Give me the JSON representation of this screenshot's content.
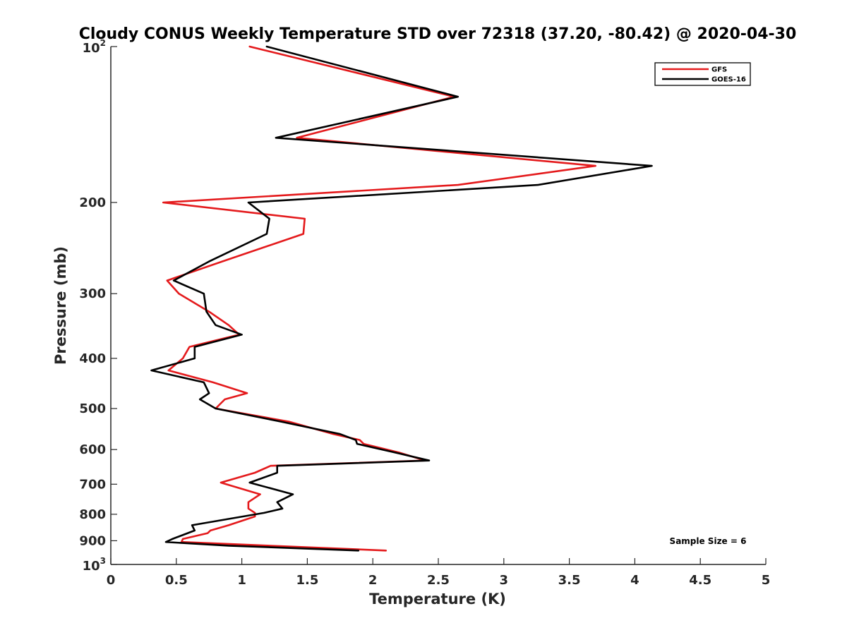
{
  "chart_data": {
    "type": "line",
    "title": "Cloudy CONUS Weekly Temperature STD over 72318 (37.20, -80.42) @ 2020-04-30",
    "xlabel": "Temperature (K)",
    "ylabel": "Pressure (mb)",
    "xlim": [
      0,
      5
    ],
    "ylim": [
      100,
      1000
    ],
    "yscale": "log",
    "yreversed": true,
    "x_ticks": [
      0,
      0.5,
      1,
      1.5,
      2,
      2.5,
      3,
      3.5,
      4,
      4.5,
      5
    ],
    "x_tick_labels": [
      "0",
      "0.5",
      "1",
      "1.5",
      "2",
      "2.5",
      "3",
      "3.5",
      "4",
      "4.5",
      "5"
    ],
    "y_ticks": [
      200,
      300,
      400,
      500,
      600,
      700,
      800,
      900
    ],
    "y_tick_labels": [
      "200",
      "300",
      "400",
      "500",
      "600",
      "700",
      "800",
      "900"
    ],
    "y_exp_ticks": [
      {
        "value": 100,
        "base": "10",
        "exp": "2"
      },
      {
        "value": 1000,
        "base": "10",
        "exp": "3"
      }
    ],
    "legend_position": "top-right",
    "annotation": "Sample Size = 6",
    "series": [
      {
        "name": "GFS",
        "color": "#e41a1c",
        "points": [
          [
            1.06,
            100
          ],
          [
            2.62,
            125
          ],
          [
            1.42,
            150
          ],
          [
            3.7,
            170
          ],
          [
            2.65,
            185
          ],
          [
            0.4,
            200
          ],
          [
            1.48,
            215
          ],
          [
            1.47,
            230
          ],
          [
            0.85,
            260
          ],
          [
            0.43,
            283
          ],
          [
            0.52,
            300
          ],
          [
            0.75,
            325
          ],
          [
            0.9,
            345
          ],
          [
            0.98,
            360
          ],
          [
            0.6,
            380
          ],
          [
            0.55,
            400
          ],
          [
            0.44,
            422
          ],
          [
            0.78,
            445
          ],
          [
            1.04,
            467
          ],
          [
            0.87,
            480
          ],
          [
            0.8,
            500
          ],
          [
            1.36,
            530
          ],
          [
            1.7,
            560
          ],
          [
            1.9,
            575
          ],
          [
            1.93,
            585
          ],
          [
            2.2,
            608
          ],
          [
            2.4,
            630
          ],
          [
            1.22,
            645
          ],
          [
            1.1,
            665
          ],
          [
            0.84,
            695
          ],
          [
            1.14,
            732
          ],
          [
            1.05,
            758
          ],
          [
            1.05,
            780
          ],
          [
            1.1,
            795
          ],
          [
            1.1,
            808
          ],
          [
            0.9,
            840
          ],
          [
            0.76,
            860
          ],
          [
            0.74,
            870
          ],
          [
            0.55,
            893
          ],
          [
            0.54,
            905
          ],
          [
            2.1,
            940
          ]
        ]
      },
      {
        "name": "GOES-16",
        "color": "#000000",
        "points": [
          [
            1.19,
            100
          ],
          [
            2.65,
            125
          ],
          [
            1.26,
            150
          ],
          [
            4.13,
            170
          ],
          [
            3.26,
            185
          ],
          [
            1.05,
            200
          ],
          [
            1.21,
            215
          ],
          [
            1.19,
            230
          ],
          [
            0.75,
            260
          ],
          [
            0.48,
            283
          ],
          [
            0.71,
            300
          ],
          [
            0.73,
            325
          ],
          [
            0.8,
            345
          ],
          [
            1.0,
            360
          ],
          [
            0.64,
            380
          ],
          [
            0.64,
            400
          ],
          [
            0.31,
            422
          ],
          [
            0.71,
            445
          ],
          [
            0.75,
            467
          ],
          [
            0.68,
            480
          ],
          [
            0.8,
            500
          ],
          [
            1.3,
            530
          ],
          [
            1.75,
            560
          ],
          [
            1.87,
            575
          ],
          [
            1.88,
            585
          ],
          [
            2.17,
            608
          ],
          [
            2.43,
            630
          ],
          [
            1.27,
            645
          ],
          [
            1.27,
            665
          ],
          [
            1.06,
            695
          ],
          [
            1.39,
            732
          ],
          [
            1.27,
            758
          ],
          [
            1.31,
            780
          ],
          [
            1.17,
            795
          ],
          [
            0.62,
            840
          ],
          [
            0.64,
            860
          ],
          [
            0.47,
            893
          ],
          [
            0.42,
            905
          ],
          [
            0.9,
            920
          ],
          [
            1.89,
            940
          ]
        ]
      }
    ]
  }
}
